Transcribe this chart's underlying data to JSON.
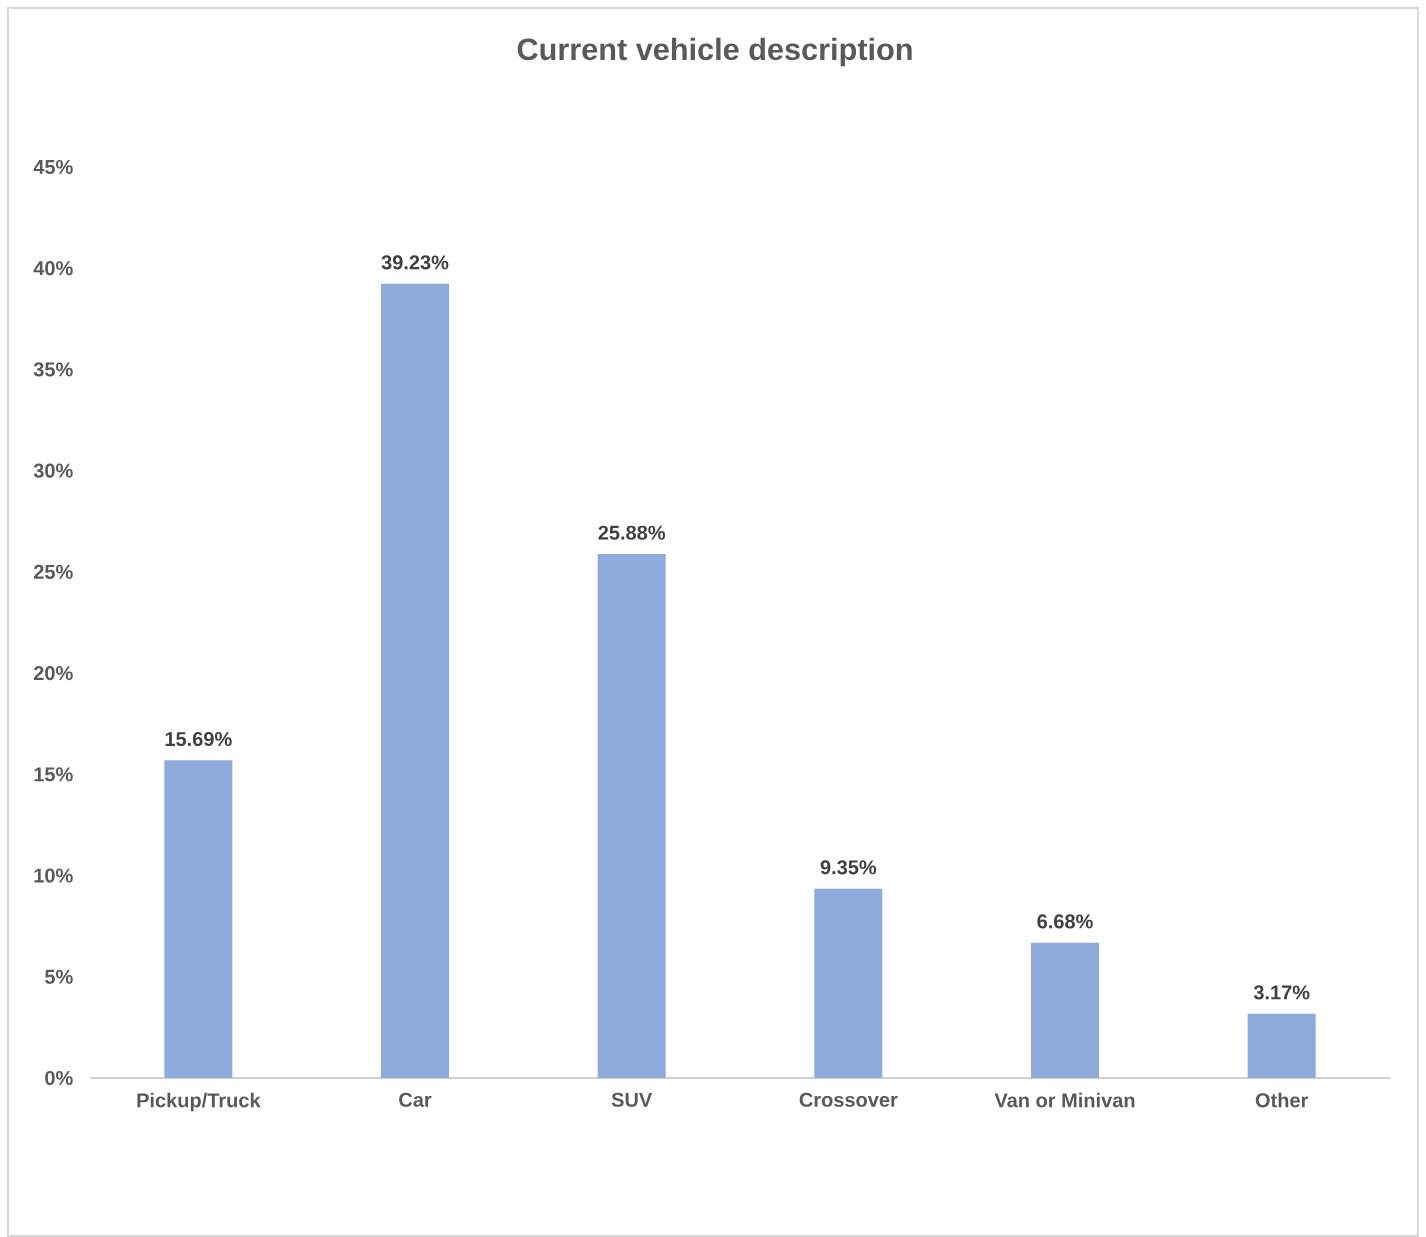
{
  "chart_data": {
    "type": "bar",
    "title": "Current vehicle description",
    "categories": [
      "Pickup/Truck",
      "Car",
      "SUV",
      "Crossover",
      "Van or Minivan",
      "Other"
    ],
    "values": [
      15.69,
      39.23,
      25.88,
      9.35,
      6.68,
      3.17
    ],
    "value_labels": [
      "15.69%",
      "39.23%",
      "25.88%",
      "9.35%",
      "6.68%",
      "3.17%"
    ],
    "color": "#8faadc",
    "ylim": [
      0,
      45
    ],
    "yticks": [
      {
        "value": 0,
        "label": "0%"
      },
      {
        "value": 5,
        "label": "5%"
      },
      {
        "value": 10,
        "label": "10%"
      },
      {
        "value": 15,
        "label": "15%"
      },
      {
        "value": 20,
        "label": "20%"
      },
      {
        "value": 25,
        "label": "25%"
      },
      {
        "value": 30,
        "label": "30%"
      },
      {
        "value": 35,
        "label": "35%"
      },
      {
        "value": 40,
        "label": "40%"
      },
      {
        "value": 45,
        "label": "45%"
      }
    ]
  }
}
